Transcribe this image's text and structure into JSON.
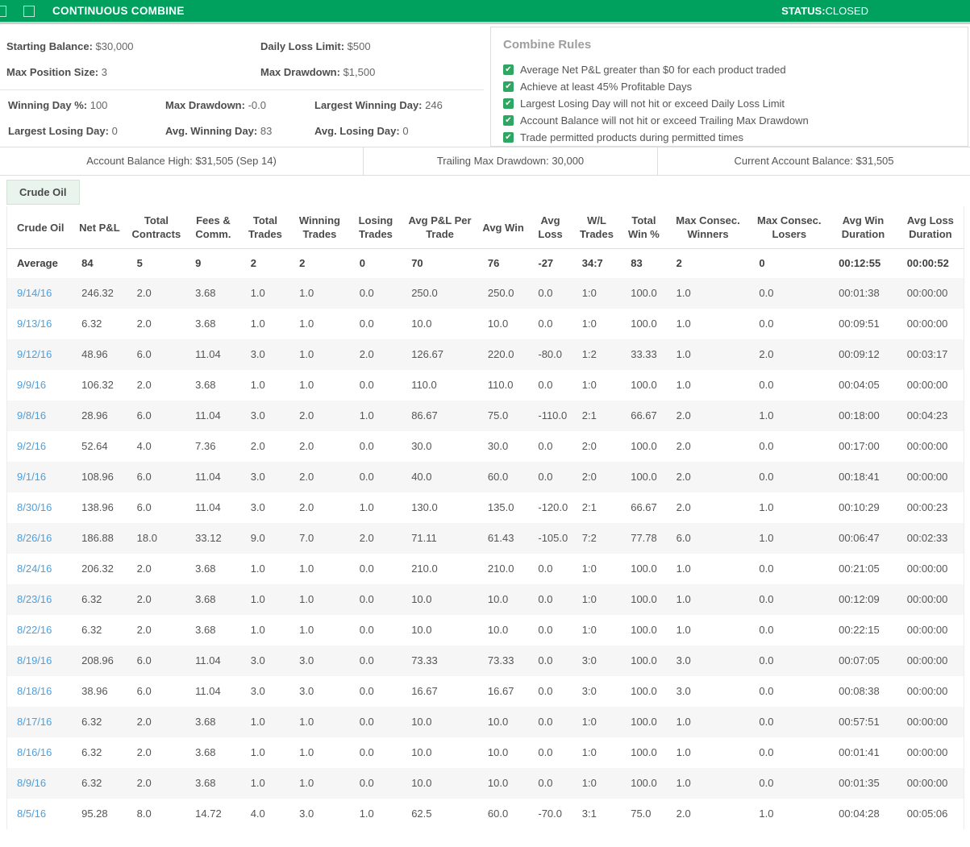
{
  "topbar": {
    "title": "CONTINUOUS COMBINE",
    "status_label": "STATUS:",
    "status_value": "CLOSED"
  },
  "summary": {
    "top": [
      {
        "label": "Starting Balance:",
        "value": "$30,000"
      },
      {
        "label": "Daily Loss Limit:",
        "value": "$500"
      },
      {
        "label": "Max Position Size:",
        "value": "3"
      },
      {
        "label": "Max Drawdown:",
        "value": "$1,500"
      }
    ],
    "bottom": [
      {
        "label": "Winning Day %:",
        "value": "100"
      },
      {
        "label": "Max Drawdown:",
        "value": "-0.0"
      },
      {
        "label": "Largest Winning Day:",
        "value": "246"
      },
      {
        "label": "Largest Losing Day:",
        "value": "0"
      },
      {
        "label": "Avg. Winning Day:",
        "value": "83"
      },
      {
        "label": "Avg. Losing Day:",
        "value": "0"
      }
    ]
  },
  "combine_rules": {
    "title": "Combine Rules",
    "checkbox_icon": "check-icon",
    "items": [
      "Average Net P&L greater than $0 for each product traded",
      "Achieve at least 45% Profitable Days",
      "Largest Losing Day will not hit or exceed Daily Loss Limit",
      "Account Balance will not hit or exceed Trailing Max Drawdown",
      "Trade permitted products during permitted times"
    ]
  },
  "balance_bar": {
    "cells": [
      {
        "label": "Account Balance High:",
        "value": "$31,505 (Sep 14)"
      },
      {
        "label": "Trailing Max Drawdown:",
        "value": "30,000"
      },
      {
        "label": "Current Account Balance:",
        "value": "$31,505"
      }
    ]
  },
  "product_tab": {
    "label": "Crude Oil"
  },
  "table": {
    "columns": [
      "Crude Oil",
      "Net P&L",
      "Total Contracts",
      "Fees & Comm.",
      "Total Trades",
      "Winning Trades",
      "Losing Trades",
      "Avg P&L Per Trade",
      "Avg Win",
      "Avg Loss",
      "W/L Trades",
      "Total Win %",
      "Max Consec. Winners",
      "Max Consec. Losers",
      "Avg Win Duration",
      "Avg Loss Duration"
    ],
    "average_row": {
      "label": "Average",
      "values": [
        "84",
        "5",
        "9",
        "2",
        "2",
        "0",
        "70",
        "76",
        "-27",
        "34:7",
        "83",
        "2",
        "0",
        "00:12:55",
        "00:00:52"
      ]
    },
    "rows": [
      {
        "date": "9/14/16",
        "values": [
          "246.32",
          "2.0",
          "3.68",
          "1.0",
          "1.0",
          "0.0",
          "250.0",
          "250.0",
          "0.0",
          "1:0",
          "100.0",
          "1.0",
          "0.0",
          "00:01:38",
          "00:00:00"
        ]
      },
      {
        "date": "9/13/16",
        "values": [
          "6.32",
          "2.0",
          "3.68",
          "1.0",
          "1.0",
          "0.0",
          "10.0",
          "10.0",
          "0.0",
          "1:0",
          "100.0",
          "1.0",
          "0.0",
          "00:09:51",
          "00:00:00"
        ]
      },
      {
        "date": "9/12/16",
        "values": [
          "48.96",
          "6.0",
          "11.04",
          "3.0",
          "1.0",
          "2.0",
          "126.67",
          "220.0",
          "-80.0",
          "1:2",
          "33.33",
          "1.0",
          "2.0",
          "00:09:12",
          "00:03:17"
        ]
      },
      {
        "date": "9/9/16",
        "values": [
          "106.32",
          "2.0",
          "3.68",
          "1.0",
          "1.0",
          "0.0",
          "110.0",
          "110.0",
          "0.0",
          "1:0",
          "100.0",
          "1.0",
          "0.0",
          "00:04:05",
          "00:00:00"
        ]
      },
      {
        "date": "9/8/16",
        "values": [
          "28.96",
          "6.0",
          "11.04",
          "3.0",
          "2.0",
          "1.0",
          "86.67",
          "75.0",
          "-110.0",
          "2:1",
          "66.67",
          "2.0",
          "1.0",
          "00:18:00",
          "00:04:23"
        ]
      },
      {
        "date": "9/2/16",
        "values": [
          "52.64",
          "4.0",
          "7.36",
          "2.0",
          "2.0",
          "0.0",
          "30.0",
          "30.0",
          "0.0",
          "2:0",
          "100.0",
          "2.0",
          "0.0",
          "00:17:00",
          "00:00:00"
        ]
      },
      {
        "date": "9/1/16",
        "values": [
          "108.96",
          "6.0",
          "11.04",
          "3.0",
          "2.0",
          "0.0",
          "40.0",
          "60.0",
          "0.0",
          "2:0",
          "100.0",
          "2.0",
          "0.0",
          "00:18:41",
          "00:00:00"
        ]
      },
      {
        "date": "8/30/16",
        "values": [
          "138.96",
          "6.0",
          "11.04",
          "3.0",
          "2.0",
          "1.0",
          "130.0",
          "135.0",
          "-120.0",
          "2:1",
          "66.67",
          "2.0",
          "1.0",
          "00:10:29",
          "00:00:23"
        ]
      },
      {
        "date": "8/26/16",
        "values": [
          "186.88",
          "18.0",
          "33.12",
          "9.0",
          "7.0",
          "2.0",
          "71.11",
          "61.43",
          "-105.0",
          "7:2",
          "77.78",
          "6.0",
          "1.0",
          "00:06:47",
          "00:02:33"
        ]
      },
      {
        "date": "8/24/16",
        "values": [
          "206.32",
          "2.0",
          "3.68",
          "1.0",
          "1.0",
          "0.0",
          "210.0",
          "210.0",
          "0.0",
          "1:0",
          "100.0",
          "1.0",
          "0.0",
          "00:21:05",
          "00:00:00"
        ]
      },
      {
        "date": "8/23/16",
        "values": [
          "6.32",
          "2.0",
          "3.68",
          "1.0",
          "1.0",
          "0.0",
          "10.0",
          "10.0",
          "0.0",
          "1:0",
          "100.0",
          "1.0",
          "0.0",
          "00:12:09",
          "00:00:00"
        ]
      },
      {
        "date": "8/22/16",
        "values": [
          "6.32",
          "2.0",
          "3.68",
          "1.0",
          "1.0",
          "0.0",
          "10.0",
          "10.0",
          "0.0",
          "1:0",
          "100.0",
          "1.0",
          "0.0",
          "00:22:15",
          "00:00:00"
        ]
      },
      {
        "date": "8/19/16",
        "values": [
          "208.96",
          "6.0",
          "11.04",
          "3.0",
          "3.0",
          "0.0",
          "73.33",
          "73.33",
          "0.0",
          "3:0",
          "100.0",
          "3.0",
          "0.0",
          "00:07:05",
          "00:00:00"
        ]
      },
      {
        "date": "8/18/16",
        "values": [
          "38.96",
          "6.0",
          "11.04",
          "3.0",
          "3.0",
          "0.0",
          "16.67",
          "16.67",
          "0.0",
          "3:0",
          "100.0",
          "3.0",
          "0.0",
          "00:08:38",
          "00:00:00"
        ]
      },
      {
        "date": "8/17/16",
        "values": [
          "6.32",
          "2.0",
          "3.68",
          "1.0",
          "1.0",
          "0.0",
          "10.0",
          "10.0",
          "0.0",
          "1:0",
          "100.0",
          "1.0",
          "0.0",
          "00:57:51",
          "00:00:00"
        ]
      },
      {
        "date": "8/16/16",
        "values": [
          "6.32",
          "2.0",
          "3.68",
          "1.0",
          "1.0",
          "0.0",
          "10.0",
          "10.0",
          "0.0",
          "1:0",
          "100.0",
          "1.0",
          "0.0",
          "00:01:41",
          "00:00:00"
        ]
      },
      {
        "date": "8/9/16",
        "values": [
          "6.32",
          "2.0",
          "3.68",
          "1.0",
          "1.0",
          "0.0",
          "10.0",
          "10.0",
          "0.0",
          "1:0",
          "100.0",
          "1.0",
          "0.0",
          "00:01:35",
          "00:00:00"
        ]
      },
      {
        "date": "8/5/16",
        "values": [
          "95.28",
          "8.0",
          "14.72",
          "4.0",
          "3.0",
          "1.0",
          "62.5",
          "60.0",
          "-70.0",
          "3:1",
          "75.0",
          "2.0",
          "1.0",
          "00:04:28",
          "00:05:06"
        ]
      }
    ]
  },
  "colors": {
    "header_green": "#00a05e",
    "link_blue": "#4f9fd9",
    "check_green": "#2fa662",
    "tab_background": "#e9f4ed"
  }
}
